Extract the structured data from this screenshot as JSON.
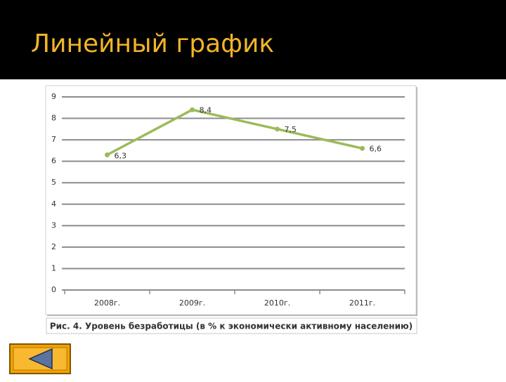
{
  "chart_data": {
    "type": "line",
    "title": "Линейный график",
    "caption": "Рис. 4. Уровень безработицы (в % к экономически активному населению)",
    "categories": [
      "2008г.",
      "2009г.",
      "2010г.",
      "2011г."
    ],
    "series": [
      {
        "color": "#9bbb59",
        "values": [
          6.3,
          8.4,
          7.5,
          6.6
        ],
        "value_labels": [
          "6,3",
          "8,4",
          "7,5",
          "6,6"
        ]
      }
    ],
    "ylim": [
      0,
      9
    ],
    "yticks": [
      0,
      1,
      2,
      3,
      4,
      5,
      6,
      7,
      8,
      9
    ],
    "grid": true
  }
}
